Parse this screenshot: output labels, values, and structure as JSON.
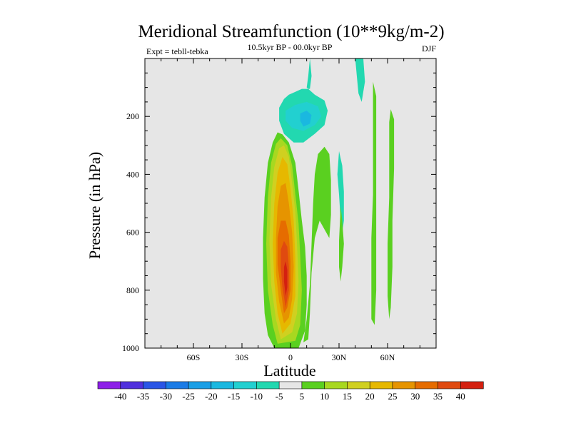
{
  "chart_data": {
    "type": "contour",
    "title": "Meridional Streamfunction (10**9kg/m-2)",
    "subtitle": "10.5kyr BP - 00.0kyr BP",
    "left_label": "Expt = tebll-tebka",
    "right_label": "DJF",
    "xlabel": "Latitude",
    "ylabel": "Pressure (in hPa)",
    "xlim": [
      -90,
      90
    ],
    "ylim": [
      0,
      1000
    ],
    "x_ticks": [
      {
        "value": -60,
        "label": "60S"
      },
      {
        "value": -30,
        "label": "30S"
      },
      {
        "value": 0,
        "label": "0"
      },
      {
        "value": 30,
        "label": "30N"
      },
      {
        "value": 60,
        "label": "60N"
      }
    ],
    "y_ticks": [
      {
        "value": 200,
        "label": "200"
      },
      {
        "value": 400,
        "label": "400"
      },
      {
        "value": 600,
        "label": "600"
      },
      {
        "value": 800,
        "label": "800"
      },
      {
        "value": 1000,
        "label": "1000"
      }
    ],
    "background_color": "#e6e6e6",
    "colorbar": {
      "labels": [
        "-40",
        "-35",
        "-30",
        "-25",
        "-20",
        "-15",
        "-10",
        "-5",
        "5",
        "10",
        "15",
        "20",
        "25",
        "30",
        "35",
        "40"
      ],
      "colors": [
        "#8d1fe8",
        "#5030dd",
        "#2a55e6",
        "#1a7be6",
        "#1a9fe6",
        "#1ab8e0",
        "#22d0d0",
        "#22d8b0",
        "#e6e6e6",
        "#5ad020",
        "#a8d820",
        "#d0d020",
        "#e6b800",
        "#e69400",
        "#e66c00",
        "#e04a10",
        "#d42010"
      ]
    },
    "regions": [
      {
        "name": "positive-cell-level-5",
        "color_index": 9,
        "points": [
          [
            -10,
            1000
          ],
          [
            -14,
            955
          ],
          [
            -16,
            880
          ],
          [
            -17,
            760
          ],
          [
            -17,
            620
          ],
          [
            -16,
            480
          ],
          [
            -14,
            360
          ],
          [
            -11,
            290
          ],
          [
            -8,
            255
          ],
          [
            -5,
            262
          ],
          [
            -1,
            290
          ],
          [
            3,
            360
          ],
          [
            5,
            455
          ],
          [
            7,
            560
          ],
          [
            9,
            650
          ],
          [
            10,
            750
          ],
          [
            10,
            850
          ],
          [
            9,
            940
          ],
          [
            5,
            1000
          ]
        ]
      },
      {
        "name": "positive-cell-level-10",
        "color_index": 10,
        "points": [
          [
            -8,
            985
          ],
          [
            -11,
            920
          ],
          [
            -14,
            800
          ],
          [
            -15,
            640
          ],
          [
            -14,
            480
          ],
          [
            -12,
            360
          ],
          [
            -9,
            295
          ],
          [
            -6,
            275
          ],
          [
            -2,
            300
          ],
          [
            1,
            370
          ],
          [
            3,
            470
          ],
          [
            5,
            570
          ],
          [
            6,
            680
          ],
          [
            7,
            800
          ],
          [
            6,
            920
          ],
          [
            3,
            975
          ]
        ]
      },
      {
        "name": "positive-cell-level-15",
        "color_index": 11,
        "points": [
          [
            -6,
            970
          ],
          [
            -9,
            900
          ],
          [
            -12,
            780
          ],
          [
            -13,
            630
          ],
          [
            -12,
            480
          ],
          [
            -10,
            375
          ],
          [
            -7,
            310
          ],
          [
            -4,
            300
          ],
          [
            -1,
            340
          ],
          [
            1,
            430
          ],
          [
            3,
            530
          ],
          [
            4,
            640
          ],
          [
            5,
            770
          ],
          [
            4,
            880
          ],
          [
            1,
            945
          ]
        ]
      },
      {
        "name": "positive-cell-level-20",
        "color_index": 12,
        "points": [
          [
            -5,
            950
          ],
          [
            -8,
            880
          ],
          [
            -10,
            770
          ],
          [
            -11,
            640
          ],
          [
            -10,
            500
          ],
          [
            -8,
            395
          ],
          [
            -5,
            340
          ],
          [
            -2,
            365
          ],
          [
            0,
            450
          ],
          [
            2,
            560
          ],
          [
            3,
            690
          ],
          [
            3,
            820
          ],
          [
            0,
            915
          ]
        ]
      },
      {
        "name": "positive-cell-level-25",
        "color_index": 13,
        "points": [
          [
            -4,
            915
          ],
          [
            -7,
            840
          ],
          [
            -9,
            740
          ],
          [
            -9,
            620
          ],
          [
            -8,
            510
          ],
          [
            -6,
            440
          ],
          [
            -3,
            430
          ],
          [
            -1,
            500
          ],
          [
            1,
            600
          ],
          [
            2,
            720
          ],
          [
            1,
            830
          ],
          [
            -1,
            895
          ]
        ]
      },
      {
        "name": "positive-cell-level-30",
        "color_index": 14,
        "points": [
          [
            -4,
            880
          ],
          [
            -6,
            800
          ],
          [
            -8,
            710
          ],
          [
            -8,
            620
          ],
          [
            -6,
            560
          ],
          [
            -3,
            560
          ],
          [
            -1,
            610
          ],
          [
            0,
            700
          ],
          [
            0,
            800
          ],
          [
            -2,
            860
          ]
        ]
      },
      {
        "name": "positive-cell-level-35",
        "color_index": 15,
        "points": [
          [
            -3,
            860
          ],
          [
            -5,
            790
          ],
          [
            -6,
            720
          ],
          [
            -6,
            660
          ],
          [
            -4,
            630
          ],
          [
            -2,
            650
          ],
          [
            -1,
            720
          ],
          [
            -1,
            800
          ]
        ]
      },
      {
        "name": "positive-cell-level-40",
        "color_index": 16,
        "points": [
          [
            -3,
            820
          ],
          [
            -4,
            770
          ],
          [
            -4,
            720
          ],
          [
            -3,
            700
          ],
          [
            -2,
            730
          ],
          [
            -2,
            790
          ]
        ]
      },
      {
        "name": "right-of-equator-level-5",
        "color_index": 9,
        "points": [
          [
            8,
            980
          ],
          [
            10,
            900
          ],
          [
            12,
            780
          ],
          [
            13,
            640
          ],
          [
            14,
            500
          ],
          [
            15,
            400
          ],
          [
            17,
            330
          ],
          [
            21,
            305
          ],
          [
            24,
            330
          ],
          [
            25,
            420
          ],
          [
            25,
            540
          ],
          [
            24,
            620
          ],
          [
            22,
            600
          ],
          [
            18,
            560
          ],
          [
            15,
            620
          ],
          [
            13,
            740
          ],
          [
            12,
            880
          ],
          [
            11,
            970
          ]
        ]
      },
      {
        "name": "negative-cell-upper-level-5",
        "color_index": 7,
        "points": [
          [
            -7,
            170
          ],
          [
            -4,
            140
          ],
          [
            -1,
            125
          ],
          [
            3,
            115
          ],
          [
            7,
            105
          ],
          [
            12,
            105
          ],
          [
            13,
            60
          ],
          [
            12,
            0
          ],
          [
            11,
            60
          ],
          [
            10,
            100
          ],
          [
            15,
            125
          ],
          [
            21,
            145
          ],
          [
            23,
            180
          ],
          [
            21,
            230
          ],
          [
            15,
            260
          ],
          [
            8,
            290
          ],
          [
            2,
            290
          ],
          [
            -4,
            260
          ],
          [
            -7,
            215
          ]
        ]
      },
      {
        "name": "negative-cell-upper-level-10",
        "color_index": 6,
        "points": [
          [
            -3,
            180
          ],
          [
            3,
            160
          ],
          [
            10,
            150
          ],
          [
            17,
            165
          ],
          [
            19,
            200
          ],
          [
            15,
            230
          ],
          [
            8,
            250
          ],
          [
            1,
            240
          ],
          [
            -3,
            215
          ]
        ]
      },
      {
        "name": "negative-cell-upper-level-15",
        "color_index": 5,
        "points": [
          [
            6,
            190
          ],
          [
            10,
            180
          ],
          [
            13,
            195
          ],
          [
            12,
            225
          ],
          [
            8,
            235
          ],
          [
            6,
            215
          ]
        ]
      },
      {
        "name": "subtropical-band-negative-level-5",
        "color_index": 7,
        "points": [
          [
            30,
            320
          ],
          [
            32,
            370
          ],
          [
            33,
            460
          ],
          [
            33,
            560
          ],
          [
            32,
            600
          ],
          [
            31,
            560
          ],
          [
            30,
            470
          ],
          [
            29,
            400
          ]
        ]
      },
      {
        "name": "northern-column-top-negative-level-5",
        "color_index": 7,
        "points": [
          [
            40,
            0
          ],
          [
            45,
            0
          ],
          [
            46,
            80
          ],
          [
            44,
            150
          ],
          [
            42,
            120
          ],
          [
            41,
            60
          ]
        ]
      },
      {
        "name": "subtropical-band-positive-level-5",
        "color_index": 9,
        "points": [
          [
            31,
            510
          ],
          [
            32,
            560
          ],
          [
            33,
            640
          ],
          [
            32,
            720
          ],
          [
            31,
            770
          ],
          [
            30,
            720
          ],
          [
            30,
            630
          ]
        ]
      },
      {
        "name": "northern-band-level-5",
        "color_index": 9,
        "points": [
          [
            51,
            80
          ],
          [
            53,
            130
          ],
          [
            53,
            280
          ],
          [
            53,
            450
          ],
          [
            53,
            620
          ],
          [
            53,
            800
          ],
          [
            52,
            920
          ],
          [
            50,
            900
          ],
          [
            50,
            780
          ],
          [
            50,
            620
          ],
          [
            51,
            470
          ],
          [
            51,
            300
          ],
          [
            51,
            150
          ]
        ]
      },
      {
        "name": "far-northern-band-level-5",
        "color_index": 9,
        "points": [
          [
            62,
            175
          ],
          [
            64,
            210
          ],
          [
            64,
            380
          ],
          [
            63,
            560
          ],
          [
            63,
            720
          ],
          [
            62,
            860
          ],
          [
            61,
            900
          ],
          [
            60,
            820
          ],
          [
            60,
            640
          ],
          [
            61,
            480
          ],
          [
            61,
            330
          ],
          [
            61,
            220
          ]
        ]
      }
    ]
  }
}
